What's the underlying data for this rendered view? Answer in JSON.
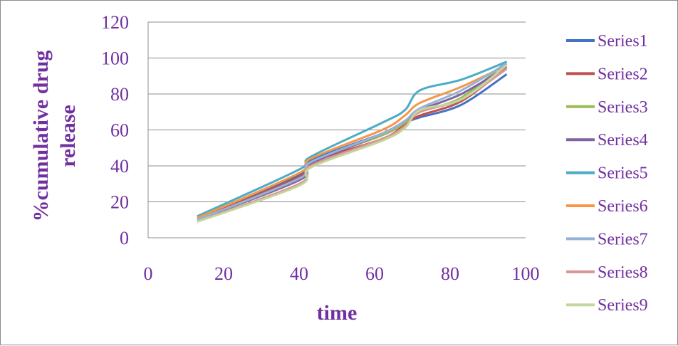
{
  "chart_data": {
    "type": "line",
    "title": "",
    "xlabel": "time",
    "ylabel": "%cumulative drug release",
    "ylabel_lines": [
      "%cumulative drug",
      "release"
    ],
    "xlim": [
      0,
      100
    ],
    "ylim": [
      0,
      120
    ],
    "x_ticks": [
      "0",
      "20",
      "40",
      "60",
      "80",
      "100"
    ],
    "y_ticks": [
      "0",
      "20",
      "40",
      "60",
      "80",
      "100",
      "120"
    ],
    "grid": "horizontal",
    "legend_position": "right",
    "x": [
      13,
      40,
      43,
      62,
      68,
      72,
      83,
      95
    ],
    "series": [
      {
        "name": "Series1",
        "color": "#4472c4",
        "values": [
          11,
          35,
          43,
          58,
          64,
          67,
          74,
          91
        ]
      },
      {
        "name": "Series2",
        "color": "#c0504d",
        "values": [
          10,
          34,
          42,
          55,
          63,
          68,
          76,
          95
        ]
      },
      {
        "name": "Series3",
        "color": "#9bbb59",
        "values": [
          10,
          32,
          42,
          57,
          64,
          70,
          78,
          98
        ]
      },
      {
        "name": "Series4",
        "color": "#8064a2",
        "values": [
          10,
          32,
          41,
          58,
          65,
          71,
          80,
          95
        ]
      },
      {
        "name": "Series5",
        "color": "#4bacc6",
        "values": [
          12,
          38,
          45,
          64,
          71,
          82,
          88,
          98
        ]
      },
      {
        "name": "Series6",
        "color": "#f79646",
        "values": [
          11,
          36,
          44,
          60,
          68,
          75,
          84,
          96
        ]
      },
      {
        "name": "Series7",
        "color": "#95b3d7",
        "values": [
          10,
          33,
          42,
          58,
          65,
          72,
          82,
          97
        ]
      },
      {
        "name": "Series8",
        "color": "#d99694",
        "values": [
          9,
          30,
          40,
          55,
          62,
          70,
          77,
          94
        ]
      },
      {
        "name": "Series9",
        "color": "#c3d69b",
        "values": [
          9,
          29,
          39,
          54,
          61,
          71,
          77,
          96
        ]
      }
    ]
  }
}
